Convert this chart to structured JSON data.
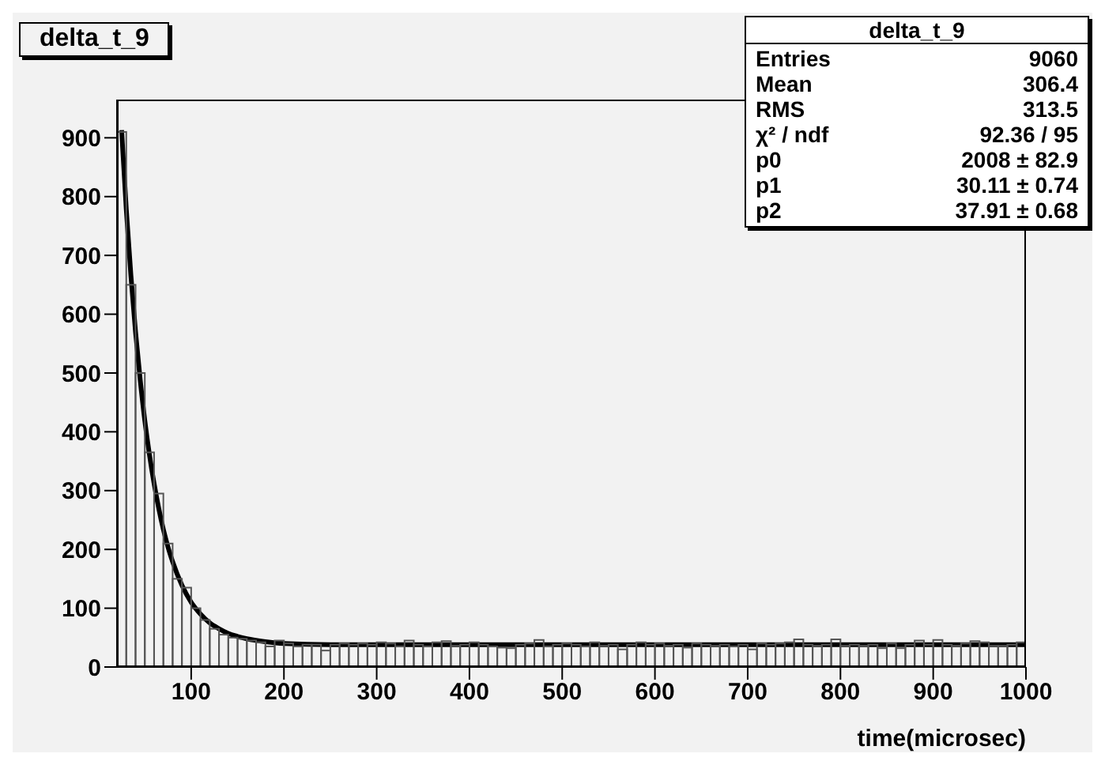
{
  "chart_data": {
    "type": "histogram",
    "title": "delta_t_9",
    "xlabel": "time(microsec)",
    "color": "#555555",
    "bins": [
      20,
      30,
      40,
      50,
      60,
      70,
      80,
      90,
      100,
      110,
      120,
      130,
      140,
      150,
      160,
      170,
      180,
      190,
      200,
      210,
      220,
      230,
      240,
      250,
      260,
      270,
      280,
      290,
      300,
      310,
      320,
      330,
      340,
      350,
      360,
      370,
      380,
      390,
      400,
      410,
      420,
      430,
      440,
      450,
      460,
      470,
      480,
      490,
      500,
      510,
      520,
      530,
      540,
      550,
      560,
      570,
      580,
      590,
      600,
      610,
      620,
      630,
      640,
      650,
      660,
      670,
      680,
      690,
      700,
      710,
      720,
      730,
      740,
      750,
      760,
      770,
      780,
      790,
      800,
      810,
      820,
      830,
      840,
      850,
      860,
      870,
      880,
      890,
      900,
      910,
      920,
      930,
      940,
      950,
      960,
      970,
      980,
      990,
      1000
    ],
    "values": [
      910,
      650,
      500,
      365,
      295,
      210,
      150,
      135,
      100,
      80,
      65,
      55,
      50,
      48,
      45,
      42,
      35,
      45,
      40,
      35,
      38,
      38,
      28,
      38,
      40,
      38,
      40,
      38,
      42,
      40,
      35,
      45,
      38,
      35,
      42,
      44,
      36,
      38,
      42,
      38,
      35,
      33,
      32,
      38,
      40,
      46,
      35,
      38,
      40,
      38,
      35,
      42,
      36,
      38,
      30,
      38,
      42,
      38,
      40,
      36,
      38,
      33,
      40,
      38,
      36,
      38,
      35,
      38,
      30,
      40,
      38,
      40,
      42,
      47,
      38,
      36,
      38,
      47,
      36,
      38,
      36,
      38,
      32,
      40,
      32,
      38,
      45,
      38,
      46,
      38,
      36,
      40,
      44,
      42,
      36,
      36,
      38,
      42
    ],
    "series": [
      {
        "type": "line",
        "color": "#000000",
        "x": [
          25,
          30,
          35,
          40,
          45,
          50,
          55,
          60,
          65,
          70,
          75,
          80,
          90,
          100,
          110,
          120,
          130,
          140,
          150,
          160,
          180,
          200,
          250,
          300,
          1000
        ],
        "values": [
          913,
          779,
          666,
          570,
          489,
          419,
          361,
          312,
          270,
          234,
          204,
          179,
          139,
          110,
          90,
          75,
          65,
          57,
          52,
          48,
          43,
          40,
          38,
          38,
          38
        ]
      }
    ],
    "xlim": [
      20,
      1000
    ],
    "ylim": [
      0,
      965
    ],
    "xticks": [
      100,
      200,
      300,
      400,
      500,
      600,
      700,
      800,
      900,
      1000
    ],
    "yticks": [
      0,
      100,
      200,
      300,
      400,
      500,
      600,
      700,
      800,
      900
    ],
    "annotations": [
      "delta_t_9",
      "Entries",
      "9060",
      "Mean",
      "306.4",
      "RMS",
      "313.5",
      "χ² / ndf",
      "92.36 / 95",
      "p0",
      "2008 ± 82.9",
      "p1",
      "30.11 ± 0.74",
      "p2",
      "37.91 ± 0.68"
    ]
  }
}
